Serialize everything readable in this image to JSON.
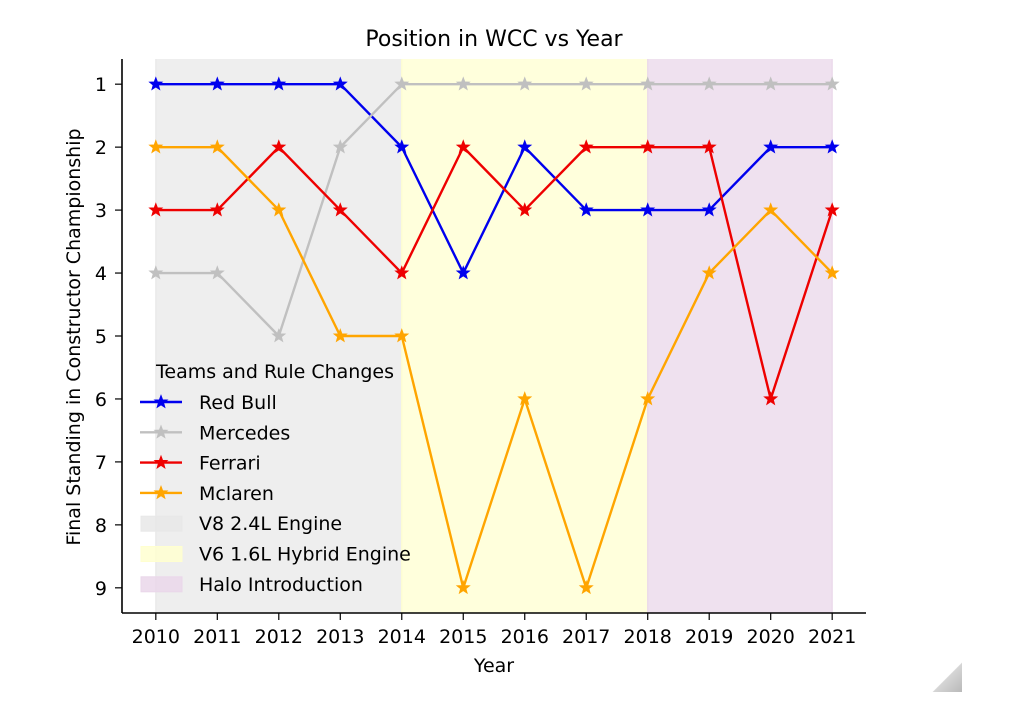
{
  "chart_data": {
    "type": "line",
    "title": "Position in WCC vs Year",
    "xlabel": "Year",
    "ylabel": "Final Standing in Constructor Championship",
    "x": [
      2010,
      2011,
      2012,
      2013,
      2014,
      2015,
      2016,
      2017,
      2018,
      2019,
      2020,
      2021
    ],
    "xlim": [
      2009.45,
      2021.55
    ],
    "ylim": [
      9.4,
      0.6
    ],
    "y_inverted": true,
    "yticks": [
      1,
      2,
      3,
      4,
      5,
      6,
      7,
      8,
      9
    ],
    "grid": false,
    "legend_title": "Teams and Rule Changes",
    "legend_location": "lower-left",
    "series": [
      {
        "name": "Red Bull",
        "color": "#0000ee",
        "marker": "star-icon",
        "values": [
          1,
          1,
          1,
          1,
          2,
          4,
          2,
          3,
          3,
          3,
          2,
          2
        ]
      },
      {
        "name": "Mercedes",
        "color": "#c0c0c0",
        "marker": "star-icon",
        "values": [
          4,
          4,
          5,
          2,
          1,
          1,
          1,
          1,
          1,
          1,
          1,
          1
        ]
      },
      {
        "name": "Ferrari",
        "color": "#ee0000",
        "marker": "star-icon",
        "values": [
          3,
          3,
          2,
          3,
          4,
          2,
          3,
          2,
          2,
          2,
          6,
          3
        ]
      },
      {
        "name": "Mclaren",
        "color": "#ffa500",
        "marker": "star-icon",
        "values": [
          2,
          2,
          3,
          5,
          5,
          9,
          6,
          9,
          6,
          4,
          3,
          4
        ]
      }
    ],
    "regions": [
      {
        "name": "V8 2.4L Engine",
        "x_start": 2010,
        "x_end": 2014,
        "color": "#e8e8e8"
      },
      {
        "name": "V6 1.6L Hybrid Engine",
        "x_start": 2014,
        "x_end": 2018,
        "color": "#ffffd0"
      },
      {
        "name": "Halo Introduction",
        "x_start": 2018,
        "x_end": 2021,
        "color": "#ead7ea"
      }
    ]
  }
}
